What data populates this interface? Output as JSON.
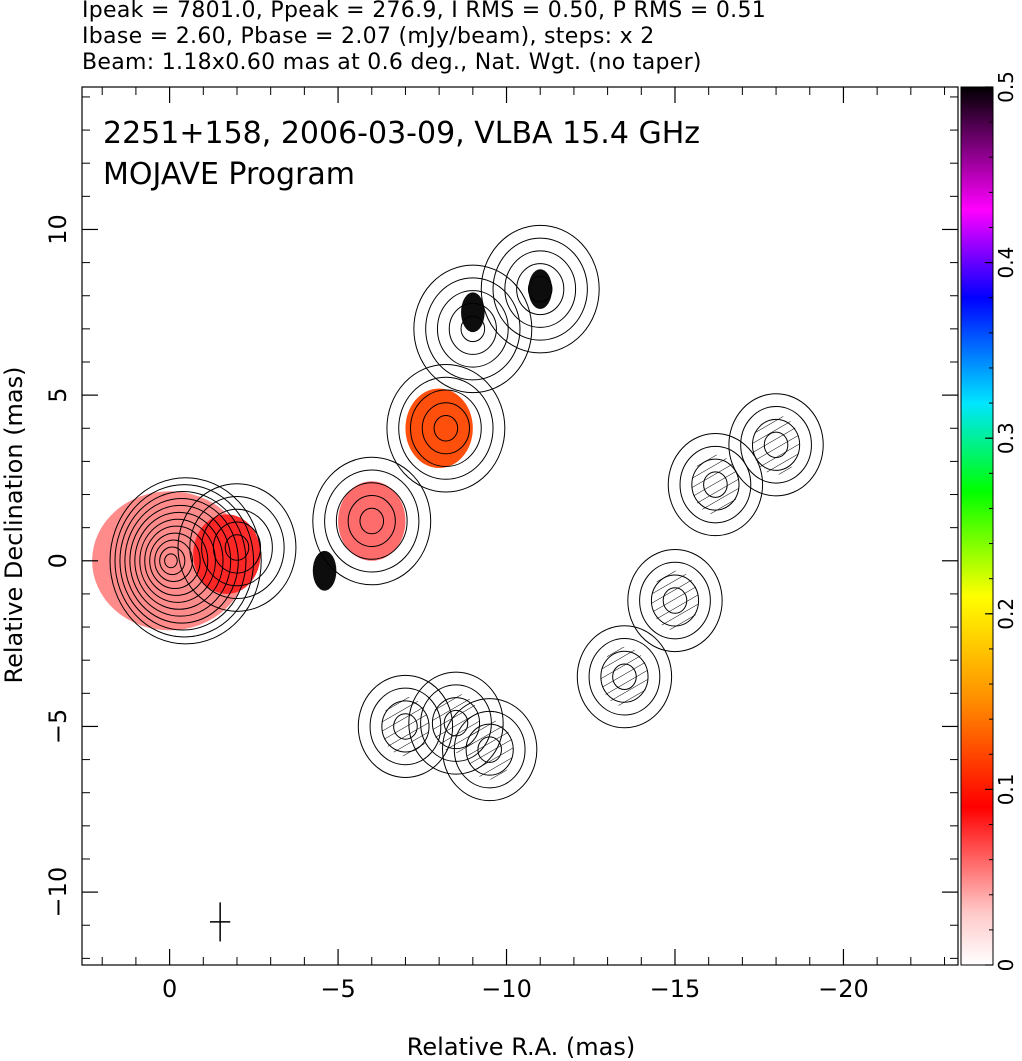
{
  "header": {
    "line1": "Ipeak = 7801.0, Ppeak = 276.9, I RMS = 0.50, P RMS = 0.51",
    "line2": "Ibase = 2.60, Pbase = 2.07 (mJy/beam), steps: x 2",
    "line3": "Beam: 1.18x0.60 mas at 0.6 deg., Nat. Wgt. (no taper)"
  },
  "chart_data": {
    "type": "heatmap",
    "title": "2251+158, 2006-03-09, VLBA 15.4 GHz",
    "subtitle": "MOJAVE Program",
    "xlabel": "Relative R.A. (mas)",
    "ylabel": "Relative Declination (mas)",
    "xlim": [
      2.6,
      -23.4
    ],
    "ylim": [
      -12.2,
      14.3
    ],
    "x_ticks": [
      0,
      -5,
      -10,
      -15,
      -20
    ],
    "x_tick_labels": [
      "0",
      "−5",
      "−10",
      "−15",
      "−20"
    ],
    "y_ticks": [
      -10,
      -5,
      0,
      5,
      10
    ],
    "y_tick_labels": [
      "−10",
      "−5",
      "0",
      "5",
      "10"
    ],
    "colorbar": {
      "range": [
        0,
        0.5
      ],
      "ticks": [
        0,
        0.1,
        0.2,
        0.3,
        0.4,
        0.5
      ],
      "tick_labels": [
        "0",
        "0.1",
        "0.2",
        "0.3",
        "0.4",
        "0.5"
      ],
      "colors": [
        "#ffffff",
        "#ff0000",
        "#ff8c00",
        "#ffff00",
        "#00ff00",
        "#00e5ff",
        "#0000ff",
        "#ff00ff",
        "#000000"
      ]
    },
    "beam": {
      "major_mas": 1.18,
      "minor_mas": 0.6,
      "pa_deg": 0.6,
      "center": [
        -1.5,
        -10.9
      ]
    },
    "stokes_I_contours": {
      "base_mJy": 2.6,
      "step_factor": 2,
      "peak_mJy": 7801.0,
      "core_center": [
        0,
        0
      ],
      "jet_components": [
        {
          "x": -2.0,
          "y": 0.4
        },
        {
          "x": -6.0,
          "y": 1.2
        },
        {
          "x": -8.2,
          "y": 4.0
        },
        {
          "x": -9.0,
          "y": 7.0
        },
        {
          "x": -11.0,
          "y": 8.2
        },
        {
          "x": -7.0,
          "y": -5.0
        },
        {
          "x": -8.5,
          "y": -4.9
        },
        {
          "x": -9.5,
          "y": -5.7
        },
        {
          "x": -13.5,
          "y": -3.5
        },
        {
          "x": -15.0,
          "y": -1.2
        },
        {
          "x": -16.2,
          "y": 2.3
        },
        {
          "x": -18.0,
          "y": 3.5
        }
      ]
    },
    "polarization_regions": [
      {
        "x": 0,
        "y": 0,
        "frac": 0.05
      },
      {
        "x": -1.7,
        "y": 0.2,
        "frac": 0.08
      },
      {
        "x": -6.0,
        "y": 1.2,
        "frac": 0.06
      },
      {
        "x": -8.0,
        "y": 4.0,
        "frac": 0.12
      },
      {
        "x": -4.6,
        "y": -0.3,
        "frac": 0.5
      },
      {
        "x": -9.0,
        "y": 7.5,
        "frac": 0.5
      },
      {
        "x": -11.0,
        "y": 8.2,
        "frac": 0.5
      }
    ]
  }
}
